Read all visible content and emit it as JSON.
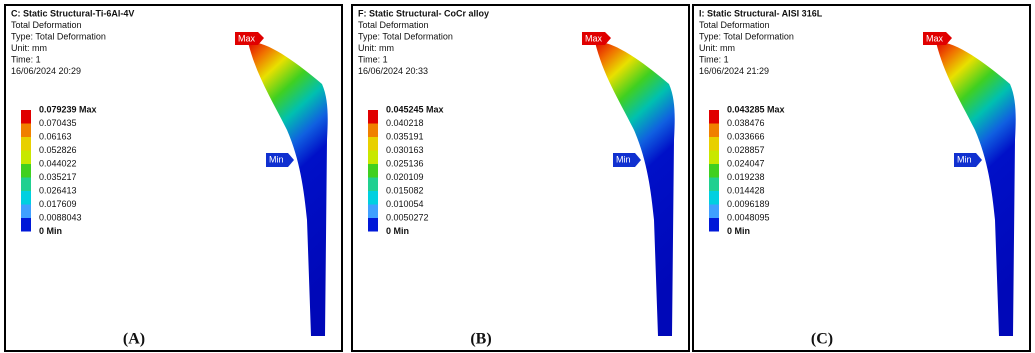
{
  "panels": [
    {
      "header": [
        "C: Static Structural-Ti-6Al-4V",
        "Total Deformation",
        "Type: Total Deformation",
        "Unit: mm",
        "Time: 1",
        "16/06/2024 20:29"
      ],
      "legend": [
        "0.079239 Max",
        "0.070435",
        "0.06163",
        "0.052826",
        "0.044022",
        "0.035217",
        "0.026413",
        "0.017609",
        "0.0088043",
        "0 Min"
      ],
      "max_tag": "Max",
      "min_tag": "Min",
      "caption": "(A)"
    },
    {
      "header": [
        "F: Static Structural- CoCr alloy",
        "Total Deformation",
        "Type: Total Deformation",
        "Unit: mm",
        "Time: 1",
        "16/06/2024 20:33"
      ],
      "legend": [
        "0.045245 Max",
        "0.040218",
        "0.035191",
        "0.030163",
        "0.025136",
        "0.020109",
        "0.015082",
        "0.010054",
        "0.0050272",
        "0 Min"
      ],
      "max_tag": "Max",
      "min_tag": "Min",
      "caption": "(B)"
    },
    {
      "header": [
        "I: Static Structural- AISI 316L",
        "Total Deformation",
        "Type: Total Deformation",
        "Unit: mm",
        "Time: 1",
        "16/06/2024 21:29"
      ],
      "legend": [
        "0.043285 Max",
        "0.038476",
        "0.033666",
        "0.028857",
        "0.024047",
        "0.019238",
        "0.014428",
        "0.0096189",
        "0.0048095",
        "0 Min"
      ],
      "max_tag": "Max",
      "min_tag": "Min",
      "caption": "(C)"
    }
  ]
}
